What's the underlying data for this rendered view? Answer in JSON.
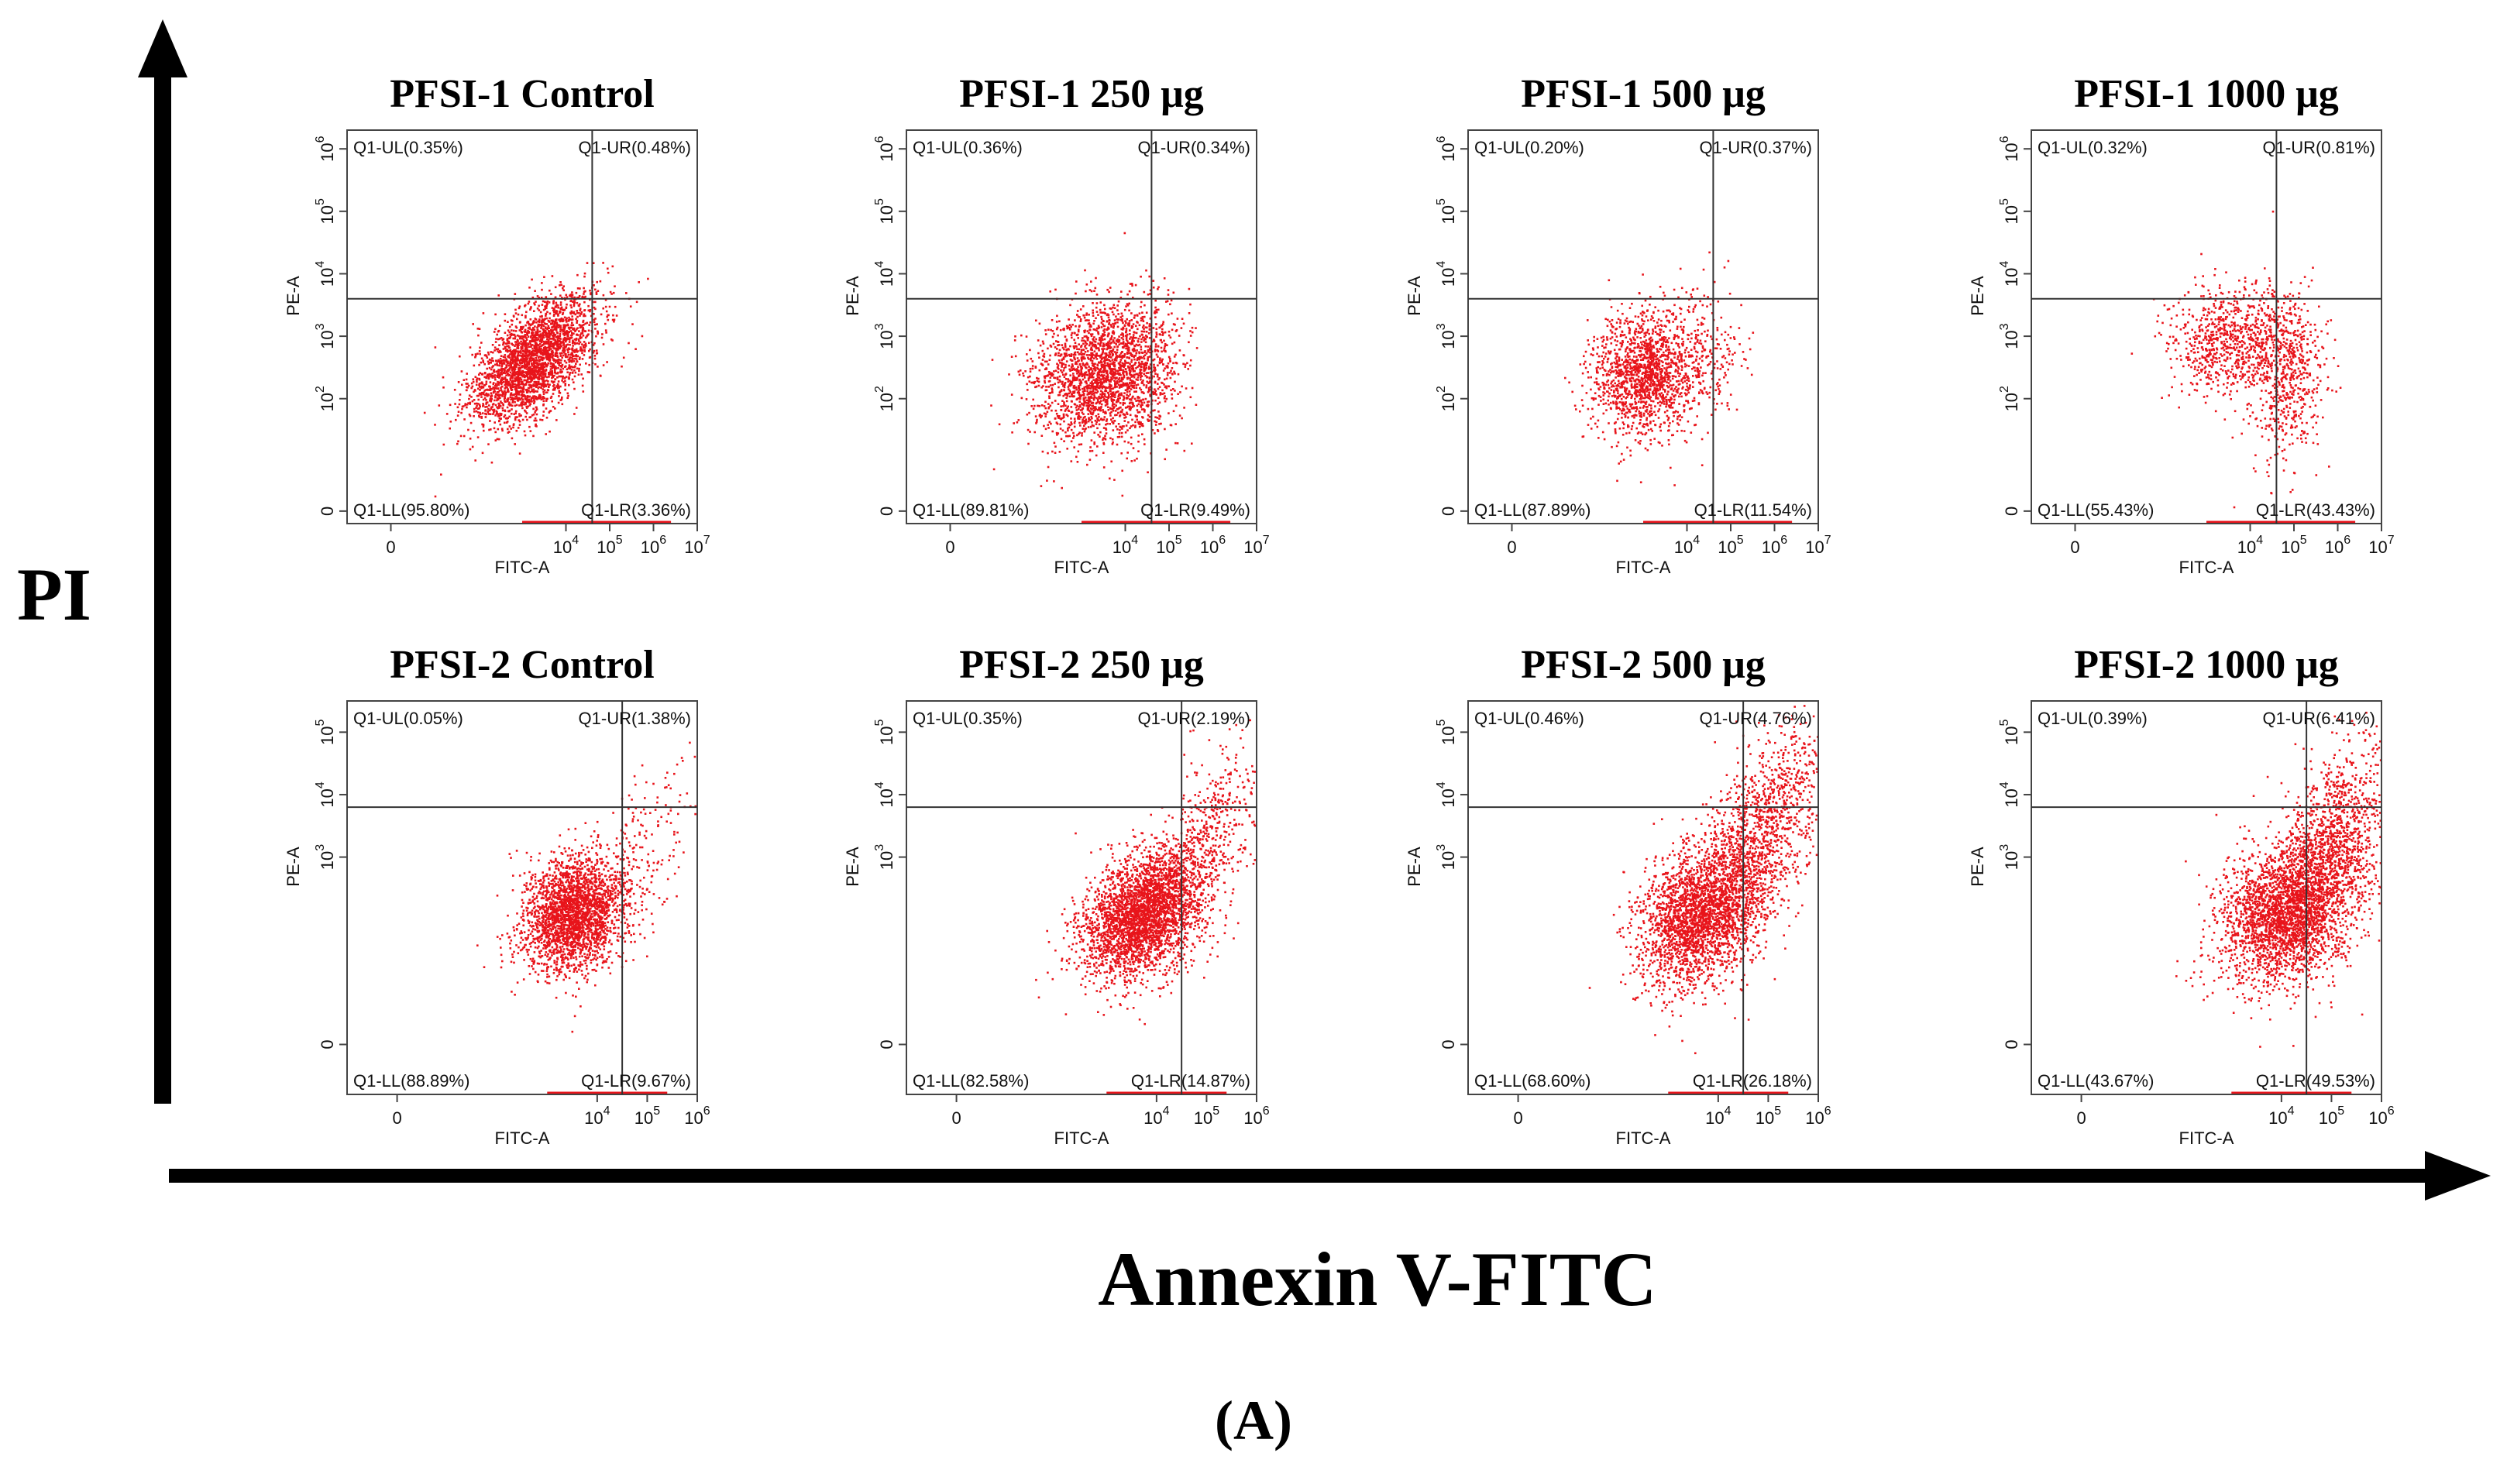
{
  "figure": {
    "y_axis_label": "PI",
    "x_axis_label": "Annexin V-FITC",
    "panel_label": "(A)",
    "dot_color": "#e8141b"
  },
  "chart_data": [
    {
      "type": "scatter",
      "title": "PFSI-1 Control",
      "xlabel": "FITC-A",
      "ylabel": "PE-A",
      "xticks": [
        {
          "base": "0",
          "exp": ""
        },
        {
          "base": "10",
          "exp": "4"
        },
        {
          "base": "10",
          "exp": "5"
        },
        {
          "base": "10",
          "exp": "6"
        },
        {
          "base": "10",
          "exp": "7"
        }
      ],
      "yticks": [
        {
          "base": "0",
          "exp": ""
        },
        {
          "base": "10",
          "exp": "2"
        },
        {
          "base": "10",
          "exp": "3"
        },
        {
          "base": "10",
          "exp": "4"
        },
        {
          "base": "10",
          "exp": "5"
        },
        {
          "base": "10",
          "exp": "6"
        }
      ],
      "xlim": [
        -1,
        7
      ],
      "ylim": [
        0,
        6.3
      ],
      "gate": {
        "x": 4.6,
        "y": 3.6
      },
      "quadrants": {
        "UL": "Q1-UL(0.35%)",
        "UR": "Q1-UR(0.48%)",
        "LL": "Q1-LL(95.80%)",
        "LR": "Q1-LR(3.36%)"
      },
      "clusters": [
        {
          "cx": 3.2,
          "cy": 2.6,
          "sx": 0.7,
          "sy": 0.5,
          "rho": 0.55,
          "n": 2600
        },
        {
          "cx": 4.2,
          "cy": 3.2,
          "sx": 0.5,
          "sy": 0.4,
          "rho": 0.3,
          "n": 120
        }
      ]
    },
    {
      "type": "scatter",
      "title": "PFSI-1 250 μg",
      "xlabel": "FITC-A",
      "ylabel": "PE-A",
      "xticks": [
        {
          "base": "0",
          "exp": ""
        },
        {
          "base": "10",
          "exp": "4"
        },
        {
          "base": "10",
          "exp": "5"
        },
        {
          "base": "10",
          "exp": "6"
        },
        {
          "base": "10",
          "exp": "7"
        }
      ],
      "yticks": [
        {
          "base": "0",
          "exp": ""
        },
        {
          "base": "10",
          "exp": "2"
        },
        {
          "base": "10",
          "exp": "3"
        },
        {
          "base": "10",
          "exp": "4"
        },
        {
          "base": "10",
          "exp": "5"
        },
        {
          "base": "10",
          "exp": "6"
        }
      ],
      "xlim": [
        -1,
        7
      ],
      "ylim": [
        0,
        6.3
      ],
      "gate": {
        "x": 4.6,
        "y": 3.6
      },
      "quadrants": {
        "UL": "Q1-UL(0.36%)",
        "UR": "Q1-UR(0.34%)",
        "LL": "Q1-LL(89.81%)",
        "LR": "Q1-LR(9.49%)"
      },
      "clusters": [
        {
          "cx": 3.4,
          "cy": 2.4,
          "sx": 0.75,
          "sy": 0.55,
          "rho": 0.15,
          "n": 2200
        },
        {
          "cx": 4.6,
          "cy": 2.6,
          "sx": 0.4,
          "sy": 0.6,
          "rho": 0.0,
          "n": 250
        }
      ]
    },
    {
      "type": "scatter",
      "title": "PFSI-1 500 μg",
      "xlabel": "FITC-A",
      "ylabel": "PE-A",
      "xticks": [
        {
          "base": "0",
          "exp": ""
        },
        {
          "base": "10",
          "exp": "4"
        },
        {
          "base": "10",
          "exp": "5"
        },
        {
          "base": "10",
          "exp": "6"
        },
        {
          "base": "10",
          "exp": "7"
        }
      ],
      "yticks": [
        {
          "base": "0",
          "exp": ""
        },
        {
          "base": "10",
          "exp": "2"
        },
        {
          "base": "10",
          "exp": "3"
        },
        {
          "base": "10",
          "exp": "4"
        },
        {
          "base": "10",
          "exp": "5"
        },
        {
          "base": "10",
          "exp": "6"
        }
      ],
      "xlim": [
        -1,
        7
      ],
      "ylim": [
        0,
        6.3
      ],
      "gate": {
        "x": 4.6,
        "y": 3.6
      },
      "quadrants": {
        "UL": "Q1-UL(0.20%)",
        "UR": "Q1-UR(0.37%)",
        "LL": "Q1-LL(87.89%)",
        "LR": "Q1-LR(11.54%)"
      },
      "clusters": [
        {
          "cx": 3.0,
          "cy": 2.4,
          "sx": 0.6,
          "sy": 0.5,
          "rho": 0.1,
          "n": 1500
        },
        {
          "cx": 4.3,
          "cy": 2.7,
          "sx": 0.5,
          "sy": 0.6,
          "rho": 0.1,
          "n": 250
        }
      ]
    },
    {
      "type": "scatter",
      "title": "PFSI-1 1000 μg",
      "xlabel": "FITC-A",
      "ylabel": "PE-A",
      "xticks": [
        {
          "base": "0",
          "exp": ""
        },
        {
          "base": "10",
          "exp": "4"
        },
        {
          "base": "10",
          "exp": "5"
        },
        {
          "base": "10",
          "exp": "6"
        },
        {
          "base": "10",
          "exp": "7"
        }
      ],
      "yticks": [
        {
          "base": "0",
          "exp": ""
        },
        {
          "base": "10",
          "exp": "2"
        },
        {
          "base": "10",
          "exp": "3"
        },
        {
          "base": "10",
          "exp": "4"
        },
        {
          "base": "10",
          "exp": "5"
        },
        {
          "base": "10",
          "exp": "6"
        }
      ],
      "xlim": [
        -1,
        7
      ],
      "ylim": [
        0,
        6.3
      ],
      "gate": {
        "x": 4.6,
        "y": 3.6
      },
      "quadrants": {
        "UL": "Q1-UL(0.32%)",
        "UR": "Q1-UR(0.81%)",
        "LL": "Q1-LL(55.43%)",
        "LR": "Q1-LR(43.43%)"
      },
      "clusters": [
        {
          "cx": 3.5,
          "cy": 2.9,
          "sx": 0.7,
          "sy": 0.45,
          "rho": 0.0,
          "n": 800
        },
        {
          "cx": 4.8,
          "cy": 2.4,
          "sx": 0.45,
          "sy": 0.7,
          "rho": 0.0,
          "n": 600
        }
      ]
    },
    {
      "type": "scatter",
      "title": "PFSI-2 Control",
      "xlabel": "FITC-A",
      "ylabel": "PE-A",
      "xticks": [
        {
          "base": "0",
          "exp": ""
        },
        {
          "base": "10",
          "exp": "4"
        },
        {
          "base": "10",
          "exp": "5"
        },
        {
          "base": "10",
          "exp": "6"
        }
      ],
      "yticks": [
        {
          "base": "0",
          "exp": ""
        },
        {
          "base": "10",
          "exp": "3"
        },
        {
          "base": "10",
          "exp": "4"
        },
        {
          "base": "10",
          "exp": "5"
        }
      ],
      "xlim": [
        -1,
        6
      ],
      "ylim": [
        -0.8,
        5.5
      ],
      "gate": {
        "x": 4.5,
        "y": 3.8
      },
      "quadrants": {
        "UL": "Q1-UL(0.05%)",
        "UR": "Q1-UR(1.38%)",
        "LL": "Q1-LL(88.89%)",
        "LR": "Q1-LR(9.67%)"
      },
      "clusters": [
        {
          "cx": 3.5,
          "cy": 2.1,
          "sx": 0.5,
          "sy": 0.45,
          "rho": 0.2,
          "n": 2500
        },
        {
          "cx": 4.8,
          "cy": 3.0,
          "sx": 0.6,
          "sy": 0.8,
          "rho": 0.6,
          "n": 200
        }
      ]
    },
    {
      "type": "scatter",
      "title": "PFSI-2 250 μg",
      "xlabel": "FITC-A",
      "ylabel": "PE-A",
      "xticks": [
        {
          "base": "0",
          "exp": ""
        },
        {
          "base": "10",
          "exp": "4"
        },
        {
          "base": "10",
          "exp": "5"
        },
        {
          "base": "10",
          "exp": "6"
        }
      ],
      "yticks": [
        {
          "base": "0",
          "exp": ""
        },
        {
          "base": "10",
          "exp": "3"
        },
        {
          "base": "10",
          "exp": "4"
        },
        {
          "base": "10",
          "exp": "5"
        }
      ],
      "xlim": [
        -1,
        6
      ],
      "ylim": [
        -0.8,
        5.5
      ],
      "gate": {
        "x": 4.5,
        "y": 3.8
      },
      "quadrants": {
        "UL": "Q1-UL(0.35%)",
        "UR": "Q1-UR(2.19%)",
        "LL": "Q1-LL(82.58%)",
        "LR": "Q1-LR(14.87%)"
      },
      "clusters": [
        {
          "cx": 3.7,
          "cy": 2.1,
          "sx": 0.6,
          "sy": 0.5,
          "rho": 0.35,
          "n": 3000
        },
        {
          "cx": 4.9,
          "cy": 3.2,
          "sx": 0.6,
          "sy": 0.8,
          "rho": 0.6,
          "n": 600
        }
      ]
    },
    {
      "type": "scatter",
      "title": "PFSI-2 500 μg",
      "xlabel": "FITC-A",
      "ylabel": "PE-A",
      "xticks": [
        {
          "base": "0",
          "exp": ""
        },
        {
          "base": "10",
          "exp": "4"
        },
        {
          "base": "10",
          "exp": "5"
        },
        {
          "base": "10",
          "exp": "6"
        }
      ],
      "yticks": [
        {
          "base": "0",
          "exp": ""
        },
        {
          "base": "10",
          "exp": "3"
        },
        {
          "base": "10",
          "exp": "4"
        },
        {
          "base": "10",
          "exp": "5"
        }
      ],
      "xlim": [
        -1,
        6
      ],
      "ylim": [
        -0.8,
        5.5
      ],
      "gate": {
        "x": 4.5,
        "y": 3.8
      },
      "quadrants": {
        "UL": "Q1-UL(0.46%)",
        "UR": "Q1-UR(4.76%)",
        "LL": "Q1-LL(68.60%)",
        "LR": "Q1-LR(26.18%)"
      },
      "clusters": [
        {
          "cx": 3.6,
          "cy": 2.1,
          "sx": 0.6,
          "sy": 0.55,
          "rho": 0.3,
          "n": 2400
        },
        {
          "cx": 4.8,
          "cy": 3.3,
          "sx": 0.65,
          "sy": 0.9,
          "rho": 0.6,
          "n": 1300
        }
      ]
    },
    {
      "type": "scatter",
      "title": "PFSI-2 1000 μg",
      "xlabel": "FITC-A",
      "ylabel": "PE-A",
      "xticks": [
        {
          "base": "0",
          "exp": ""
        },
        {
          "base": "10",
          "exp": "4"
        },
        {
          "base": "10",
          "exp": "5"
        },
        {
          "base": "10",
          "exp": "6"
        }
      ],
      "yticks": [
        {
          "base": "0",
          "exp": ""
        },
        {
          "base": "10",
          "exp": "3"
        },
        {
          "base": "10",
          "exp": "4"
        },
        {
          "base": "10",
          "exp": "5"
        }
      ],
      "xlim": [
        -1,
        6
      ],
      "ylim": [
        -0.8,
        5.5
      ],
      "gate": {
        "x": 4.5,
        "y": 3.8
      },
      "quadrants": {
        "UL": "Q1-UL(0.39%)",
        "UR": "Q1-UR(6.41%)",
        "LL": "Q1-LL(43.67%)",
        "LR": "Q1-LR(49.53%)"
      },
      "clusters": [
        {
          "cx": 4.0,
          "cy": 2.1,
          "sx": 0.65,
          "sy": 0.55,
          "rho": 0.2,
          "n": 2200
        },
        {
          "cx": 4.9,
          "cy": 3.0,
          "sx": 0.6,
          "sy": 0.9,
          "rho": 0.5,
          "n": 1600
        }
      ]
    }
  ]
}
